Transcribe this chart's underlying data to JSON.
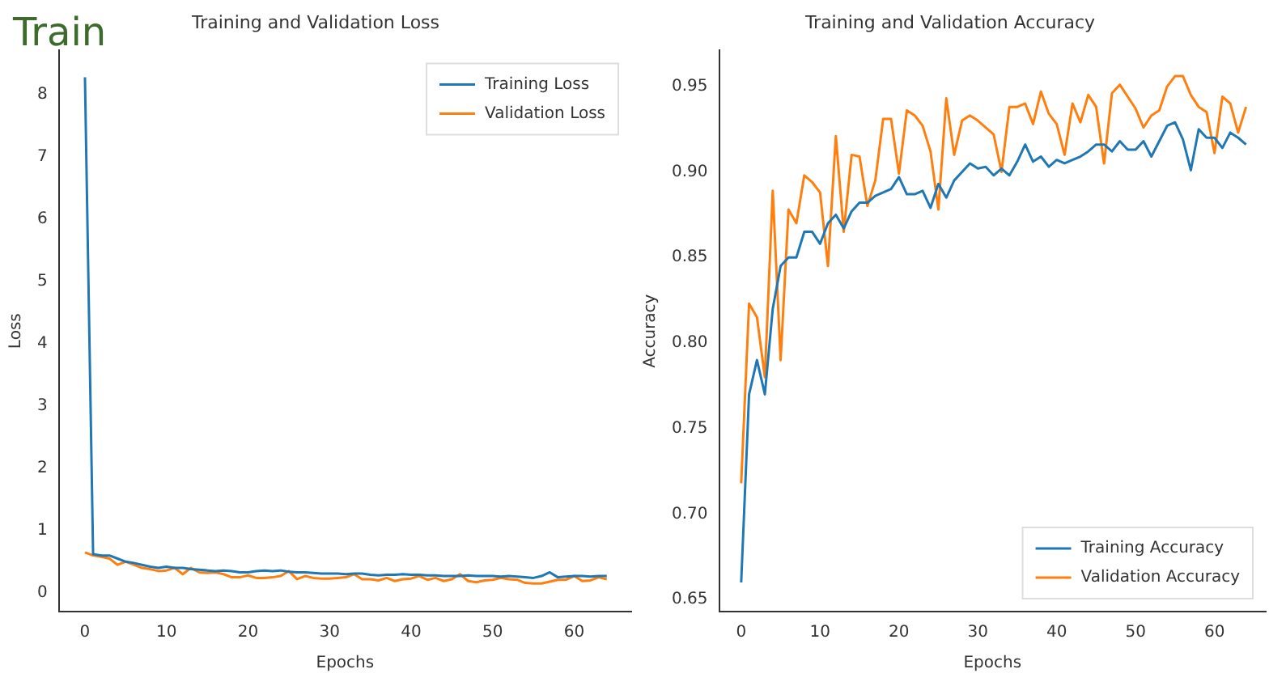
{
  "chart_data": [
    {
      "type": "line",
      "title": "Training and Validation Loss",
      "xlabel": "Epochs",
      "ylabel": "Loss",
      "annotations": [
        "Train"
      ],
      "x": [
        0,
        1,
        2,
        3,
        4,
        5,
        6,
        7,
        8,
        9,
        10,
        11,
        12,
        13,
        14,
        15,
        16,
        17,
        18,
        19,
        20,
        21,
        22,
        23,
        24,
        25,
        26,
        27,
        28,
        29,
        30,
        31,
        32,
        33,
        34,
        35,
        36,
        37,
        38,
        39,
        40,
        41,
        42,
        43,
        44,
        45,
        46,
        47,
        48,
        49,
        50,
        51,
        52,
        53,
        54,
        55,
        56,
        57,
        58,
        59,
        60,
        61,
        62,
        63,
        64
      ],
      "series": [
        {
          "name": "Training Loss",
          "color": "#1f77b4",
          "values": [
            8.27,
            0.62,
            0.6,
            0.6,
            0.55,
            0.5,
            0.48,
            0.45,
            0.42,
            0.4,
            0.42,
            0.4,
            0.4,
            0.38,
            0.37,
            0.36,
            0.35,
            0.36,
            0.35,
            0.33,
            0.33,
            0.35,
            0.36,
            0.35,
            0.36,
            0.34,
            0.33,
            0.33,
            0.32,
            0.31,
            0.31,
            0.31,
            0.3,
            0.31,
            0.31,
            0.29,
            0.28,
            0.29,
            0.29,
            0.3,
            0.29,
            0.29,
            0.28,
            0.28,
            0.27,
            0.27,
            0.27,
            0.28,
            0.27,
            0.27,
            0.27,
            0.26,
            0.27,
            0.26,
            0.25,
            0.24,
            0.27,
            0.33,
            0.25,
            0.26,
            0.27,
            0.27,
            0.26,
            0.27,
            0.27
          ]
        },
        {
          "name": "Validation Loss",
          "color": "#ff7f0e",
          "values": [
            0.65,
            0.6,
            0.58,
            0.55,
            0.45,
            0.5,
            0.45,
            0.4,
            0.38,
            0.35,
            0.36,
            0.4,
            0.3,
            0.4,
            0.33,
            0.32,
            0.33,
            0.3,
            0.25,
            0.25,
            0.28,
            0.24,
            0.24,
            0.25,
            0.27,
            0.35,
            0.22,
            0.27,
            0.24,
            0.23,
            0.23,
            0.24,
            0.25,
            0.3,
            0.22,
            0.22,
            0.2,
            0.24,
            0.19,
            0.22,
            0.23,
            0.27,
            0.21,
            0.24,
            0.19,
            0.22,
            0.3,
            0.19,
            0.17,
            0.2,
            0.21,
            0.24,
            0.22,
            0.21,
            0.16,
            0.15,
            0.15,
            0.18,
            0.21,
            0.21,
            0.27,
            0.19,
            0.2,
            0.25,
            0.22
          ]
        }
      ],
      "xlim": [
        -3.2,
        67
      ],
      "xticks": [
        0,
        10,
        20,
        30,
        40,
        50,
        60
      ],
      "ylim": [
        -0.3,
        8.7
      ],
      "yticks": [
        0,
        1,
        2,
        3,
        4,
        5,
        6,
        7,
        8
      ],
      "grid": false,
      "legend": "top right",
      "marker": "none",
      "line_style": "solid"
    },
    {
      "type": "line",
      "title": "Training and Validation Accuracy",
      "xlabel": "Epochs",
      "ylabel": "Accuracy",
      "x": [
        0,
        1,
        2,
        3,
        4,
        5,
        6,
        7,
        8,
        9,
        10,
        11,
        12,
        13,
        14,
        15,
        16,
        17,
        18,
        19,
        20,
        21,
        22,
        23,
        24,
        25,
        26,
        27,
        28,
        29,
        30,
        31,
        32,
        33,
        34,
        35,
        36,
        37,
        38,
        39,
        40,
        41,
        42,
        43,
        44,
        45,
        46,
        47,
        48,
        49,
        50,
        51,
        52,
        53,
        54,
        55,
        56,
        57,
        58,
        59,
        60,
        61,
        62,
        63,
        64
      ],
      "series": [
        {
          "name": "Training Accuracy",
          "color": "#1f77b4",
          "values": [
            0.66,
            0.77,
            0.79,
            0.77,
            0.82,
            0.845,
            0.85,
            0.85,
            0.865,
            0.865,
            0.858,
            0.87,
            0.875,
            0.867,
            0.877,
            0.882,
            0.882,
            0.886,
            0.888,
            0.89,
            0.897,
            0.887,
            0.887,
            0.889,
            0.879,
            0.893,
            0.885,
            0.895,
            0.9,
            0.905,
            0.902,
            0.903,
            0.898,
            0.902,
            0.898,
            0.906,
            0.916,
            0.906,
            0.909,
            0.903,
            0.907,
            0.905,
            0.907,
            0.909,
            0.912,
            0.916,
            0.916,
            0.912,
            0.918,
            0.913,
            0.913,
            0.918,
            0.909,
            0.918,
            0.927,
            0.929,
            0.919,
            0.901,
            0.925,
            0.92,
            0.92,
            0.914,
            0.923,
            0.92,
            0.916
          ]
        },
        {
          "name": "Validation Accuracy",
          "color": "#ff7f0e",
          "values": [
            0.718,
            0.823,
            0.815,
            0.78,
            0.889,
            0.79,
            0.878,
            0.87,
            0.898,
            0.894,
            0.888,
            0.845,
            0.921,
            0.865,
            0.91,
            0.909,
            0.88,
            0.895,
            0.931,
            0.931,
            0.899,
            0.936,
            0.933,
            0.927,
            0.912,
            0.878,
            0.943,
            0.91,
            0.93,
            0.933,
            0.93,
            0.926,
            0.922,
            0.9,
            0.938,
            0.938,
            0.94,
            0.928,
            0.947,
            0.934,
            0.928,
            0.91,
            0.94,
            0.929,
            0.945,
            0.938,
            0.905,
            0.946,
            0.951,
            0.944,
            0.937,
            0.926,
            0.933,
            0.936,
            0.95,
            0.956,
            0.956,
            0.945,
            0.938,
            0.935,
            0.911,
            0.944,
            0.94,
            0.923,
            0.938
          ]
        }
      ],
      "xlim": [
        -2.8,
        66.5
      ],
      "xticks": [
        0,
        10,
        20,
        30,
        40,
        50,
        60
      ],
      "ylim": [
        0.643,
        0.971
      ],
      "yticks": [
        0.65,
        {
          "value": 0.7,
          "label": "0.70"
        },
        0.75,
        {
          "value": 0.8,
          "label": "0.80"
        },
        0.85,
        {
          "value": 0.9,
          "label": "0.90"
        },
        0.95
      ],
      "grid": false,
      "legend": "bottom right",
      "marker": "none",
      "line_style": "solid"
    }
  ]
}
